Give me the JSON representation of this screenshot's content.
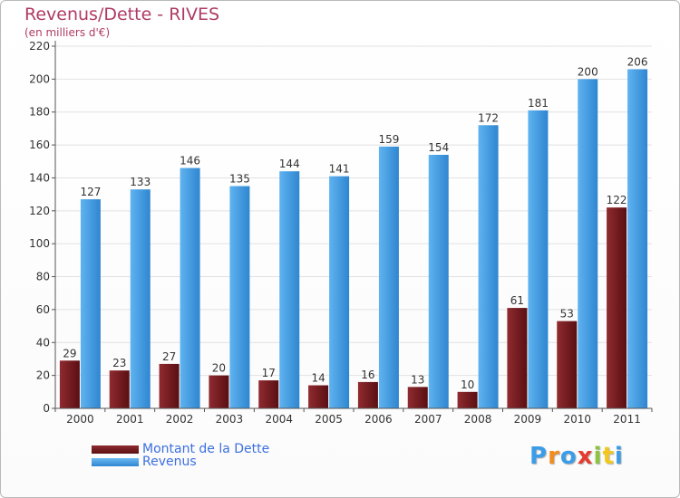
{
  "chart_data": {
    "type": "bar",
    "title": "Revenus/Dette - RIVES",
    "subtitle": "(en milliers d'€)",
    "categories": [
      "2000",
      "2001",
      "2002",
      "2003",
      "2004",
      "2005",
      "2006",
      "2007",
      "2008",
      "2009",
      "2010",
      "2011"
    ],
    "series": [
      {
        "name": "Montant de la Dette",
        "values": [
          29,
          23,
          27,
          20,
          17,
          14,
          16,
          13,
          10,
          61,
          53,
          122
        ],
        "color": "#7a1f24"
      },
      {
        "name": "Revenus",
        "values": [
          127,
          133,
          146,
          135,
          144,
          141,
          159,
          154,
          172,
          181,
          200,
          206
        ],
        "color": "#4aa3e8"
      }
    ],
    "ylim": [
      0,
      220
    ],
    "yticks": [
      0,
      20,
      40,
      60,
      80,
      100,
      120,
      140,
      160,
      180,
      200,
      220
    ],
    "grid": true,
    "legend": "bottom-left"
  },
  "logo": {
    "letters": [
      "P",
      "r",
      "o",
      "x",
      "i",
      "t",
      "i"
    ],
    "colors": [
      "#3b9de8",
      "#f28c1e",
      "#3b9de8",
      "#e63b2e",
      "#8cc63f",
      "#f2c81e",
      "#3b9de8"
    ]
  }
}
